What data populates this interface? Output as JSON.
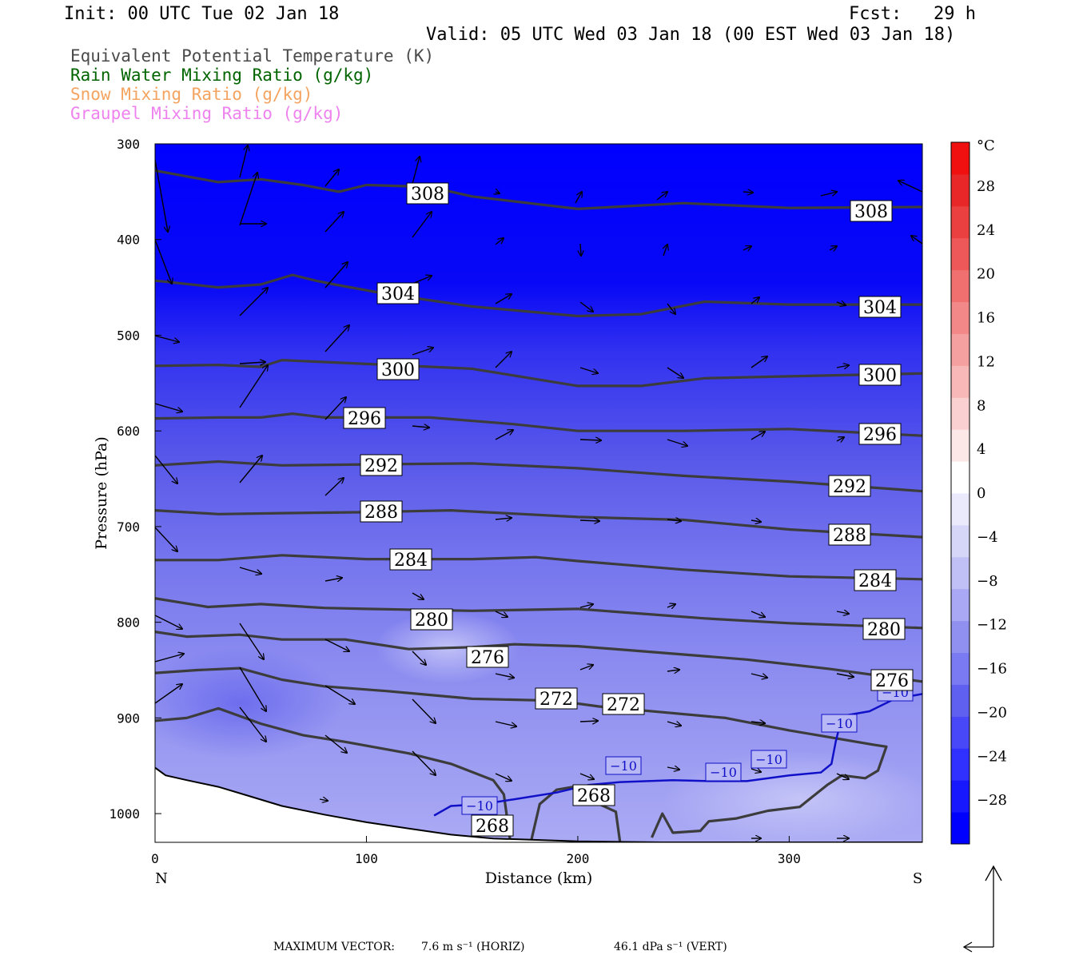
{
  "header": {
    "init": "Init: 00 UTC Tue 02 Jan 18",
    "fcst_label": "Fcst:",
    "fcst_value": "29 h",
    "valid": "Valid: 05 UTC Wed 03 Jan 18 (00 EST Wed 03 Jan 18)"
  },
  "legend": [
    {
      "text": "Equivalent Potential Temperature (K)",
      "color": "#4a4a4a"
    },
    {
      "text": "Rain Water Mixing Ratio (g/kg)",
      "color": "#006400"
    },
    {
      "text": "Snow Mixing Ratio (g/kg)",
      "color": "#f4a460"
    },
    {
      "text": "Graupel Mixing Ratio (g/kg)",
      "color": "#ee82ee"
    }
  ],
  "footer": {
    "label": "MAXIMUM VECTOR:",
    "horiz": "7.6 m s⁻¹ (HORIZ)",
    "vert": "46.1 dPa s⁻¹ (VERT)"
  },
  "chart_data": {
    "type": "contour",
    "xlabel": "Distance (km)",
    "ylabel": "Pressure (hPa)",
    "xlim": [
      0,
      363
    ],
    "ylim": [
      1030,
      300
    ],
    "x_ticks": [
      0,
      100,
      200,
      300
    ],
    "y_ticks": [
      300,
      400,
      500,
      600,
      700,
      800,
      900,
      1000
    ],
    "x_end_labels": {
      "left": "N",
      "right": "S"
    },
    "colorbar": {
      "unit": "°C",
      "tick_labels": [
        "28",
        "24",
        "20",
        "16",
        "12",
        "8",
        "4",
        "0",
        "−4",
        "−8",
        "−12",
        "−16",
        "−20",
        "−24",
        "−28"
      ],
      "tick_values": [
        28,
        24,
        20,
        16,
        12,
        8,
        4,
        0,
        -4,
        -8,
        -12,
        -16,
        -20,
        -24,
        -28
      ],
      "range": [
        -32,
        32
      ],
      "colors": [
        "#0000ff",
        "#1818ff",
        "#3030ff",
        "#4848f8",
        "#6060f0",
        "#7a7af2",
        "#9090f0",
        "#a8a8f4",
        "#c0c0f6",
        "#d6d6f8",
        "#eaeafc",
        "#ffffff",
        "#fde8e8",
        "#fbd0d0",
        "#f8b8b8",
        "#f5a0a0",
        "#f38888",
        "#f07070",
        "#ee5858",
        "#eb4040",
        "#e82828",
        "#f01010"
      ]
    },
    "theta_e_isolines": [
      {
        "level": 308,
        "labels": [
          "308",
          "308"
        ],
        "points": [
          [
            0,
            328
          ],
          [
            30,
            340
          ],
          [
            50,
            337
          ],
          [
            70,
            343
          ],
          [
            87,
            350
          ],
          [
            100,
            343
          ],
          [
            130,
            345
          ],
          [
            150,
            355
          ],
          [
            200,
            368
          ],
          [
            250,
            362
          ],
          [
            300,
            367
          ],
          [
            363,
            366
          ]
        ]
      },
      {
        "level": 304,
        "labels": [
          "304",
          "304"
        ],
        "points": [
          [
            0,
            443
          ],
          [
            30,
            450
          ],
          [
            50,
            447
          ],
          [
            65,
            437
          ],
          [
            76,
            443
          ],
          [
            85,
            447
          ],
          [
            110,
            457
          ],
          [
            150,
            470
          ],
          [
            200,
            480
          ],
          [
            230,
            478
          ],
          [
            260,
            465
          ],
          [
            300,
            468
          ],
          [
            363,
            468
          ]
        ]
      },
      {
        "level": 300,
        "labels": [
          "300",
          "300"
        ],
        "points": [
          [
            0,
            532
          ],
          [
            30,
            531
          ],
          [
            50,
            533
          ],
          [
            60,
            526
          ],
          [
            100,
            530
          ],
          [
            150,
            535
          ],
          [
            200,
            553
          ],
          [
            230,
            553
          ],
          [
            260,
            545
          ],
          [
            300,
            543
          ],
          [
            363,
            540
          ]
        ]
      },
      {
        "level": 296,
        "labels": [
          "296",
          "296"
        ],
        "points": [
          [
            0,
            587
          ],
          [
            30,
            586
          ],
          [
            50,
            586
          ],
          [
            65,
            582
          ],
          [
            80,
            586
          ],
          [
            130,
            586
          ],
          [
            170,
            593
          ],
          [
            200,
            600
          ],
          [
            250,
            600
          ],
          [
            300,
            598
          ],
          [
            363,
            605
          ]
        ]
      },
      {
        "level": 292,
        "labels": [
          "292",
          "292"
        ],
        "points": [
          [
            0,
            636
          ],
          [
            30,
            632
          ],
          [
            60,
            636
          ],
          [
            100,
            635
          ],
          [
            150,
            634
          ],
          [
            200,
            639
          ],
          [
            250,
            647
          ],
          [
            300,
            653
          ],
          [
            363,
            663
          ]
        ]
      },
      {
        "level": 288,
        "labels": [
          "288",
          "288"
        ],
        "points": [
          [
            0,
            683
          ],
          [
            30,
            687
          ],
          [
            60,
            686
          ],
          [
            100,
            685
          ],
          [
            140,
            683
          ],
          [
            200,
            690
          ],
          [
            250,
            693
          ],
          [
            300,
            703
          ],
          [
            363,
            711
          ]
        ]
      },
      {
        "level": 284,
        "labels": [
          "284",
          "284"
        ],
        "points": [
          [
            0,
            735
          ],
          [
            30,
            735
          ],
          [
            60,
            730
          ],
          [
            100,
            734
          ],
          [
            150,
            734
          ],
          [
            180,
            732
          ],
          [
            200,
            736
          ],
          [
            250,
            745
          ],
          [
            300,
            752
          ],
          [
            363,
            755
          ]
        ]
      },
      {
        "level": 280,
        "labels": [
          "280",
          "280"
        ],
        "points": [
          [
            0,
            775
          ],
          [
            25,
            784
          ],
          [
            50,
            781
          ],
          [
            80,
            785
          ],
          [
            100,
            786
          ],
          [
            150,
            788
          ],
          [
            200,
            786
          ],
          [
            230,
            791
          ],
          [
            260,
            796
          ],
          [
            300,
            801
          ],
          [
            363,
            806
          ]
        ]
      },
      {
        "level": 276,
        "labels": [
          "276",
          "276"
        ],
        "points": [
          [
            0,
            810
          ],
          [
            15,
            815
          ],
          [
            40,
            813
          ],
          [
            60,
            818
          ],
          [
            90,
            818
          ],
          [
            120,
            828
          ],
          [
            150,
            826
          ],
          [
            170,
            823
          ],
          [
            200,
            825
          ],
          [
            240,
            832
          ],
          [
            280,
            839
          ],
          [
            320,
            849
          ],
          [
            363,
            862
          ]
        ]
      },
      {
        "level": 272,
        "labels": [
          "272",
          "272"
        ],
        "points": [
          [
            0,
            853
          ],
          [
            20,
            850
          ],
          [
            40,
            848
          ],
          [
            60,
            860
          ],
          [
            80,
            867
          ],
          [
            110,
            872
          ],
          [
            150,
            880
          ],
          [
            190,
            882
          ],
          [
            210,
            888
          ],
          [
            240,
            894
          ],
          [
            270,
            900
          ],
          [
            300,
            913
          ],
          [
            340,
            928
          ],
          [
            346,
            930
          ],
          [
            342,
            955
          ],
          [
            336,
            963
          ],
          [
            325,
            960
          ],
          [
            318,
            970
          ],
          [
            305,
            993
          ],
          [
            290,
            997
          ],
          [
            275,
            1005
          ],
          [
            262,
            1008
          ],
          [
            258,
            1018
          ],
          [
            245,
            1020
          ],
          [
            240,
            1000
          ],
          [
            235,
            1025
          ]
        ]
      },
      {
        "level": 268,
        "labels": [
          "268",
          "268"
        ],
        "points": [
          [
            0,
            903
          ],
          [
            15,
            900
          ],
          [
            30,
            890
          ],
          [
            50,
            906
          ],
          [
            70,
            918
          ],
          [
            90,
            925
          ],
          [
            120,
            937
          ],
          [
            140,
            948
          ],
          [
            160,
            965
          ],
          [
            165,
            980
          ],
          [
            168,
            1028
          ]
        ]
      },
      {
        "level": 268,
        "labels": [],
        "points": [
          [
            178,
            1028
          ],
          [
            182,
            990
          ],
          [
            190,
            975
          ],
          [
            198,
            972
          ],
          [
            206,
            980
          ],
          [
            210,
            990
          ],
          [
            218,
            998
          ],
          [
            220,
            1030
          ]
        ]
      }
    ],
    "temp_minus10_isoline": {
      "label": "−10",
      "points": [
        [
          132,
          1002
        ],
        [
          140,
          992
        ],
        [
          155,
          990
        ],
        [
          170,
          985
        ],
        [
          190,
          978
        ],
        [
          205,
          970
        ],
        [
          220,
          967
        ],
        [
          245,
          965
        ],
        [
          262,
          966
        ],
        [
          280,
          966
        ],
        [
          300,
          960
        ],
        [
          315,
          957
        ],
        [
          320,
          948
        ],
        [
          322,
          925
        ],
        [
          325,
          898
        ],
        [
          338,
          893
        ],
        [
          350,
          880
        ],
        [
          363,
          875
        ]
      ]
    },
    "terrain": [
      [
        0,
        952
      ],
      [
        5,
        960
      ],
      [
        15,
        965
      ],
      [
        30,
        972
      ],
      [
        45,
        982
      ],
      [
        60,
        992
      ],
      [
        80,
        1001
      ],
      [
        100,
        1009
      ],
      [
        115,
        1014
      ],
      [
        140,
        1022
      ],
      [
        160,
        1026
      ],
      [
        200,
        1029
      ],
      [
        240,
        1030
      ],
      [
        300,
        1030
      ],
      [
        363,
        1030
      ]
    ]
  }
}
